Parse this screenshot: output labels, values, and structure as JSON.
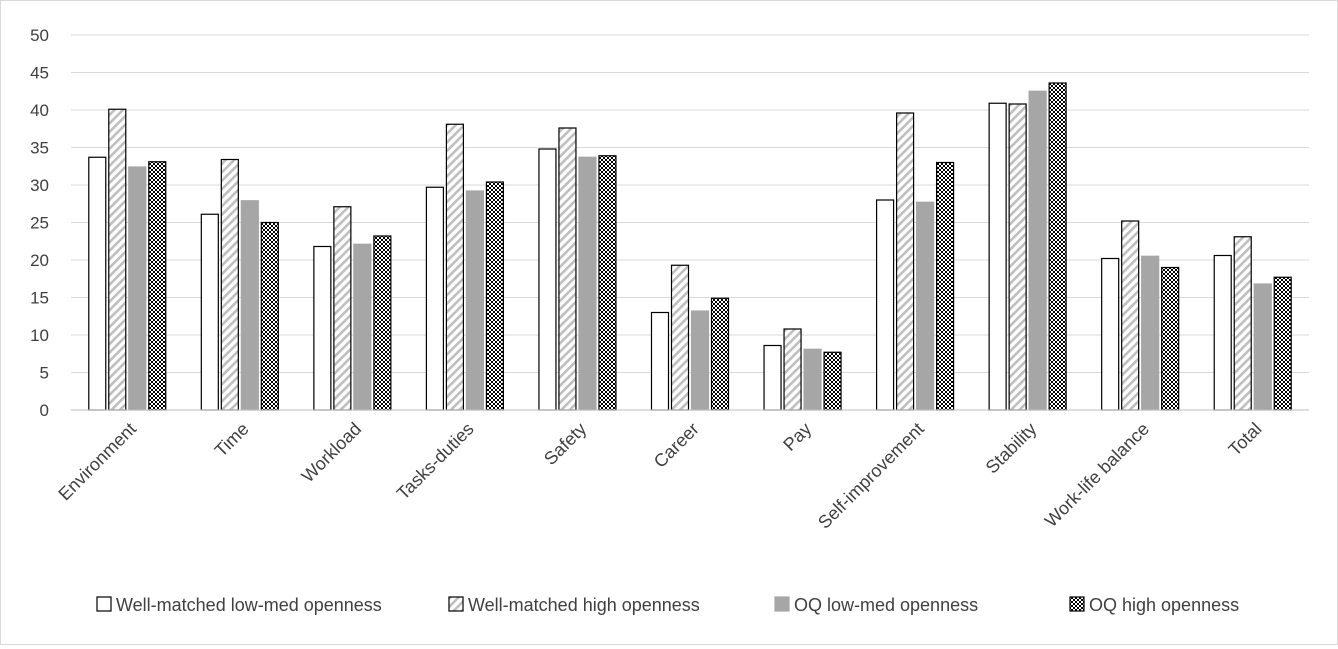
{
  "chart_data": {
    "type": "bar",
    "title": "",
    "xlabel": "",
    "ylabel": "",
    "ylim": [
      0,
      50
    ],
    "ytick_step": 5,
    "grid": true,
    "legend_position": "bottom",
    "categories": [
      "Environment",
      "Time",
      "Workload",
      "Tasks-duties",
      "Safety",
      "Career",
      "Pay",
      "Self-improvement",
      "Stability",
      "Work-life balance",
      "Total"
    ],
    "series": [
      {
        "name": "Well-matched low-med openness",
        "pattern": "white",
        "values": [
          33.7,
          26.1,
          21.8,
          29.7,
          34.8,
          13.0,
          8.6,
          28.0,
          40.9,
          20.2,
          20.6
        ]
      },
      {
        "name": "Well-matched high openness",
        "pattern": "diagonal-hatch",
        "values": [
          40.1,
          33.4,
          27.1,
          38.1,
          37.6,
          19.3,
          10.8,
          39.6,
          40.8,
          25.2,
          23.1
        ]
      },
      {
        "name": "OQ low-med openness",
        "pattern": "solid-gray",
        "values": [
          32.4,
          27.9,
          22.1,
          29.2,
          33.7,
          13.2,
          8.1,
          27.7,
          42.5,
          20.5,
          16.8
        ]
      },
      {
        "name": "OQ high openness",
        "pattern": "checker",
        "values": [
          33.1,
          25.0,
          23.2,
          30.4,
          33.9,
          14.9,
          7.7,
          33.0,
          43.6,
          19.0,
          17.7
        ]
      }
    ]
  }
}
